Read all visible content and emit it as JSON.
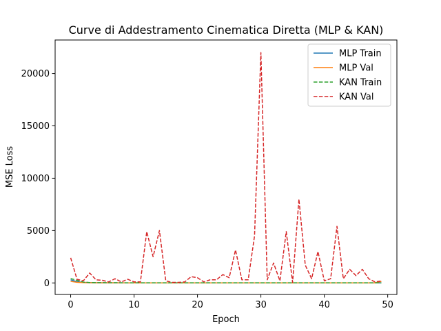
{
  "chart_data": {
    "type": "line",
    "title": "Curve di Addestramento Cinematica Diretta (MLP & KAN)",
    "xlabel": "Epoch",
    "ylabel": "MSE Loss",
    "xlim": [
      -2.45,
      51.45
    ],
    "ylim": [
      -1100,
      23200
    ],
    "xticks": [
      0,
      10,
      20,
      30,
      40,
      50
    ],
    "yticks": [
      0,
      5000,
      10000,
      15000,
      20000
    ],
    "grid": false,
    "legend_position": "top-right",
    "x": [
      0,
      1,
      2,
      3,
      4,
      5,
      6,
      7,
      8,
      9,
      10,
      11,
      12,
      13,
      14,
      15,
      16,
      17,
      18,
      19,
      20,
      21,
      22,
      23,
      24,
      25,
      26,
      27,
      28,
      29,
      30,
      31,
      32,
      33,
      34,
      35,
      36,
      37,
      38,
      39,
      40,
      41,
      42,
      43,
      44,
      45,
      46,
      47,
      48,
      49
    ],
    "series": [
      {
        "name": "MLP Train",
        "color": "#1f77b4",
        "dash": "solid",
        "values": [
          300,
          120,
          50,
          30,
          20,
          15,
          12,
          10,
          8,
          7,
          6,
          5,
          5,
          5,
          4,
          4,
          4,
          4,
          3,
          3,
          3,
          3,
          3,
          3,
          3,
          3,
          3,
          3,
          3,
          3,
          3,
          3,
          3,
          3,
          3,
          3,
          3,
          3,
          3,
          3,
          3,
          3,
          3,
          3,
          3,
          3,
          3,
          3,
          3,
          3
        ]
      },
      {
        "name": "MLP Val",
        "color": "#ff7f0e",
        "dash": "solid",
        "values": [
          150,
          60,
          30,
          20,
          15,
          12,
          10,
          8,
          7,
          6,
          5,
          5,
          5,
          5,
          4,
          4,
          4,
          4,
          4,
          4,
          4,
          4,
          4,
          4,
          4,
          4,
          4,
          4,
          4,
          4,
          4,
          4,
          4,
          4,
          4,
          4,
          4,
          4,
          4,
          4,
          4,
          4,
          4,
          4,
          4,
          4,
          4,
          4,
          4,
          150
        ]
      },
      {
        "name": "KAN Train",
        "color": "#2ca02c",
        "dash": "dashed",
        "values": [
          420,
          250,
          80,
          40,
          30,
          25,
          20,
          18,
          15,
          14,
          12,
          12,
          11,
          11,
          10,
          10,
          10,
          10,
          9,
          9,
          9,
          9,
          9,
          9,
          9,
          9,
          9,
          9,
          9,
          9,
          9,
          9,
          9,
          9,
          9,
          9,
          9,
          9,
          9,
          9,
          9,
          9,
          9,
          9,
          9,
          9,
          9,
          9,
          9,
          9
        ]
      },
      {
        "name": "KAN Val",
        "color": "#d62728",
        "dash": "dashed",
        "values": [
          2400,
          350,
          200,
          950,
          300,
          250,
          100,
          400,
          100,
          350,
          100,
          100,
          4900,
          2500,
          5000,
          200,
          50,
          50,
          100,
          600,
          500,
          100,
          300,
          300,
          800,
          500,
          3150,
          300,
          300,
          4500,
          22000,
          300,
          1900,
          200,
          4900,
          50,
          8000,
          1700,
          400,
          3000,
          200,
          400,
          5400,
          400,
          1300,
          700,
          1300,
          400,
          100,
          200
        ]
      }
    ]
  }
}
